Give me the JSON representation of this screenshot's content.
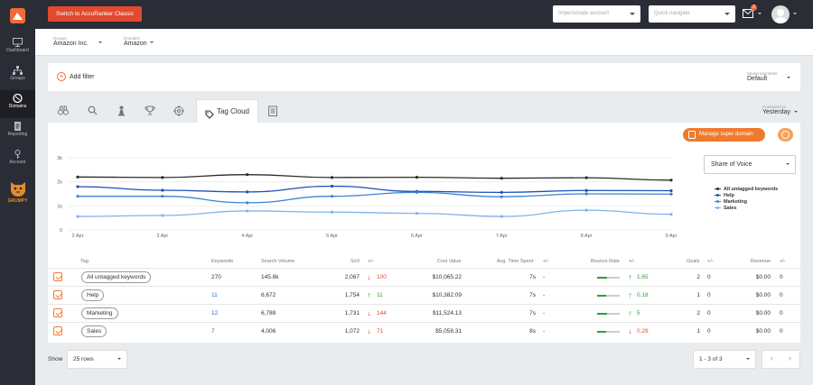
{
  "topbar": {
    "classic_button": "Switch to AccuRanker Classic",
    "impersonate_placeholder": "Impersonate account",
    "quick_navigate_placeholder": "Quick navigate",
    "notifications_count": "2"
  },
  "sidebar": {
    "items": [
      {
        "label": "Dashboard",
        "icon": "monitor-icon"
      },
      {
        "label": "Groups",
        "icon": "sitemap-icon"
      },
      {
        "label": "Domains",
        "icon": "globe-icon"
      },
      {
        "label": "Reporting",
        "icon": "report-icon"
      },
      {
        "label": "Account",
        "icon": "key-icon"
      }
    ],
    "mascot_label": "GRUMPY"
  },
  "breadcrumb": {
    "groups_label": "Groups",
    "groups_value": "Amazon Inc.",
    "domains_label": "Domains",
    "domains_value": "Amazon"
  },
  "filter": {
    "add_label": "Add filter",
    "saved_label": "Saved segments",
    "saved_value": "Default"
  },
  "tabs": {
    "active_label": "Tag Cloud",
    "compared_label": "Compared to",
    "compared_value": "Yesterday"
  },
  "panel": {
    "super_domain_button": "Manage super domain",
    "metric_select": "Share of Voice"
  },
  "chart_data": {
    "type": "line",
    "x": [
      "2 Apr",
      "3 Apr",
      "4 Apr",
      "5 Apr",
      "6 Apr",
      "7 Apr",
      "8 Apr",
      "9 Apr"
    ],
    "ylim": [
      0,
      3000
    ],
    "yticks": [
      "0",
      "1k",
      "2k",
      "3k"
    ],
    "series": [
      {
        "name": "All untagged keywords",
        "color": "#2b2b2b",
        "values": [
          2200,
          2180,
          2300,
          2180,
          2190,
          2150,
          2170,
          2070
        ]
      },
      {
        "name": "Help",
        "color": "#1f4fb8",
        "values": [
          1800,
          1650,
          1580,
          1820,
          1600,
          1560,
          1640,
          1630
        ]
      },
      {
        "name": "Marketing",
        "color": "#3a84d6",
        "values": [
          1400,
          1400,
          1130,
          1400,
          1560,
          1380,
          1500,
          1490
        ]
      },
      {
        "name": "Sales",
        "color": "#7fb3ee",
        "values": [
          560,
          600,
          790,
          740,
          690,
          560,
          820,
          650
        ]
      }
    ]
  },
  "table": {
    "headers": {
      "tag": "Tag",
      "keywords": "Keywords",
      "search_volume": "Search Volume",
      "sov": "SoV",
      "sov_change": "+/-",
      "cost_value": "Cost Value",
      "avg_time": "Avg. Time Spent",
      "avg_time_change": "+/-",
      "bounce": "Bounce Rate",
      "bounce_change": "+/-",
      "goals": "Goals",
      "goals_change": "+/-",
      "revenue": "Revenue",
      "revenue_change": "+/-"
    },
    "rows": [
      {
        "tag": "All untagged keywords",
        "keywords": "270",
        "search_volume": "145.8k",
        "sov": "2,067",
        "sov_change": "100",
        "sov_dir": "down",
        "cost_value": "$10,065.22",
        "avg_time": "7s",
        "avg_time_change": "-",
        "bounce_fill": 0.45,
        "bounce_change": "1.65",
        "bounce_dir": "up",
        "goals": "2",
        "goals_change": "0",
        "revenue": "$0.00",
        "revenue_change": "0"
      },
      {
        "tag": "Help",
        "keywords": "11",
        "search_volume": "6,672",
        "sov": "1,754",
        "sov_change": "11",
        "sov_dir": "up",
        "cost_value": "$10,382.09",
        "avg_time": "7s",
        "avg_time_change": "-",
        "bounce_fill": 0.4,
        "bounce_change": "0.18",
        "bounce_dir": "up",
        "goals": "1",
        "goals_change": "0",
        "revenue": "$0.00",
        "revenue_change": "0"
      },
      {
        "tag": "Marketing",
        "keywords": "12",
        "search_volume": "6,788",
        "sov": "1,731",
        "sov_change": "144",
        "sov_dir": "down",
        "cost_value": "$11,524.13",
        "avg_time": "7s",
        "avg_time_change": "-",
        "bounce_fill": 0.45,
        "bounce_change": "5",
        "bounce_dir": "up",
        "goals": "2",
        "goals_change": "0",
        "revenue": "$0.00",
        "revenue_change": "0"
      },
      {
        "tag": "Sales",
        "keywords": "7",
        "search_volume": "4,006",
        "sov": "1,072",
        "sov_change": "71",
        "sov_dir": "down",
        "cost_value": "$5,058.31",
        "avg_time": "8s",
        "avg_time_change": "-",
        "bounce_fill": 0.4,
        "bounce_change": "0.29",
        "bounce_dir": "down",
        "goals": "1",
        "goals_change": "0",
        "revenue": "$0.00",
        "revenue_change": "0"
      }
    ]
  },
  "footer": {
    "show_label": "Show",
    "rows_value": "25 rows",
    "pager_value": "1 - 3 of 3",
    "prev": "‹",
    "next": "›"
  }
}
